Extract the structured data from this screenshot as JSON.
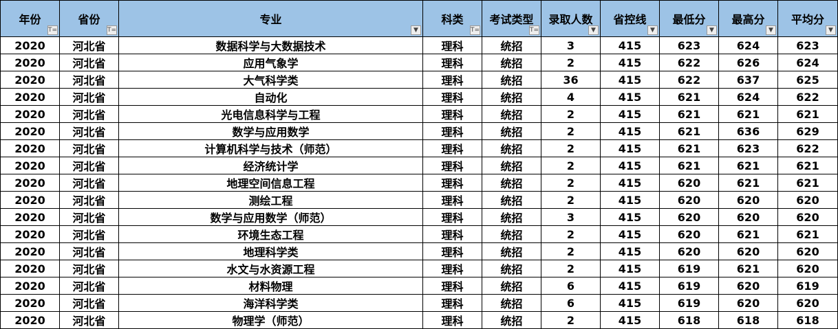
{
  "headers": [
    {
      "label": "年份",
      "filter": "filter-active-icon"
    },
    {
      "label": "省份",
      "filter": "filter-active-icon"
    },
    {
      "label": "专业",
      "filter": "dropdown-arrow-icon"
    },
    {
      "label": "科类",
      "filter": "filter-active-icon"
    },
    {
      "label": "考试类型",
      "filter": "filter-active-icon"
    },
    {
      "label": "录取人数",
      "filter": "dropdown-arrow-icon"
    },
    {
      "label": "省控线",
      "filter": "dropdown-arrow-icon"
    },
    {
      "label": "最低分",
      "filter": "dropdown-arrow-icon"
    },
    {
      "label": "最高分",
      "filter": "dropdown-arrow-icon"
    },
    {
      "label": "平均分",
      "filter": "dropdown-arrow-icon"
    }
  ],
  "rows": [
    [
      "2020",
      "河北省",
      "数据科学与大数据技术",
      "理科",
      "统招",
      "3",
      "415",
      "623",
      "624",
      "623"
    ],
    [
      "2020",
      "河北省",
      "应用气象学",
      "理科",
      "统招",
      "2",
      "415",
      "622",
      "626",
      "624"
    ],
    [
      "2020",
      "河北省",
      "大气科学类",
      "理科",
      "统招",
      "36",
      "415",
      "622",
      "637",
      "625"
    ],
    [
      "2020",
      "河北省",
      "自动化",
      "理科",
      "统招",
      "4",
      "415",
      "621",
      "624",
      "622"
    ],
    [
      "2020",
      "河北省",
      "光电信息科学与工程",
      "理科",
      "统招",
      "2",
      "415",
      "621",
      "621",
      "621"
    ],
    [
      "2020",
      "河北省",
      "数学与应用数学",
      "理科",
      "统招",
      "2",
      "415",
      "621",
      "636",
      "629"
    ],
    [
      "2020",
      "河北省",
      "计算机科学与技术（师范）",
      "理科",
      "统招",
      "2",
      "415",
      "621",
      "623",
      "622"
    ],
    [
      "2020",
      "河北省",
      "经济统计学",
      "理科",
      "统招",
      "2",
      "415",
      "621",
      "621",
      "621"
    ],
    [
      "2020",
      "河北省",
      "地理空间信息工程",
      "理科",
      "统招",
      "2",
      "415",
      "620",
      "621",
      "621"
    ],
    [
      "2020",
      "河北省",
      "测绘工程",
      "理科",
      "统招",
      "2",
      "415",
      "620",
      "620",
      "620"
    ],
    [
      "2020",
      "河北省",
      "数学与应用数学（师范）",
      "理科",
      "统招",
      "3",
      "415",
      "620",
      "620",
      "620"
    ],
    [
      "2020",
      "河北省",
      "环境生态工程",
      "理科",
      "统招",
      "2",
      "415",
      "620",
      "621",
      "621"
    ],
    [
      "2020",
      "河北省",
      "地理科学类",
      "理科",
      "统招",
      "2",
      "415",
      "620",
      "620",
      "620"
    ],
    [
      "2020",
      "河北省",
      "水文与水资源工程",
      "理科",
      "统招",
      "2",
      "415",
      "619",
      "621",
      "620"
    ],
    [
      "2020",
      "河北省",
      "材料物理",
      "理科",
      "统招",
      "6",
      "415",
      "619",
      "620",
      "619"
    ],
    [
      "2020",
      "河北省",
      "海洋科学类",
      "理科",
      "统招",
      "6",
      "415",
      "619",
      "620",
      "620"
    ],
    [
      "2020",
      "河北省",
      "物理学（师范）",
      "理科",
      "统招",
      "2",
      "415",
      "618",
      "618",
      "618"
    ]
  ]
}
